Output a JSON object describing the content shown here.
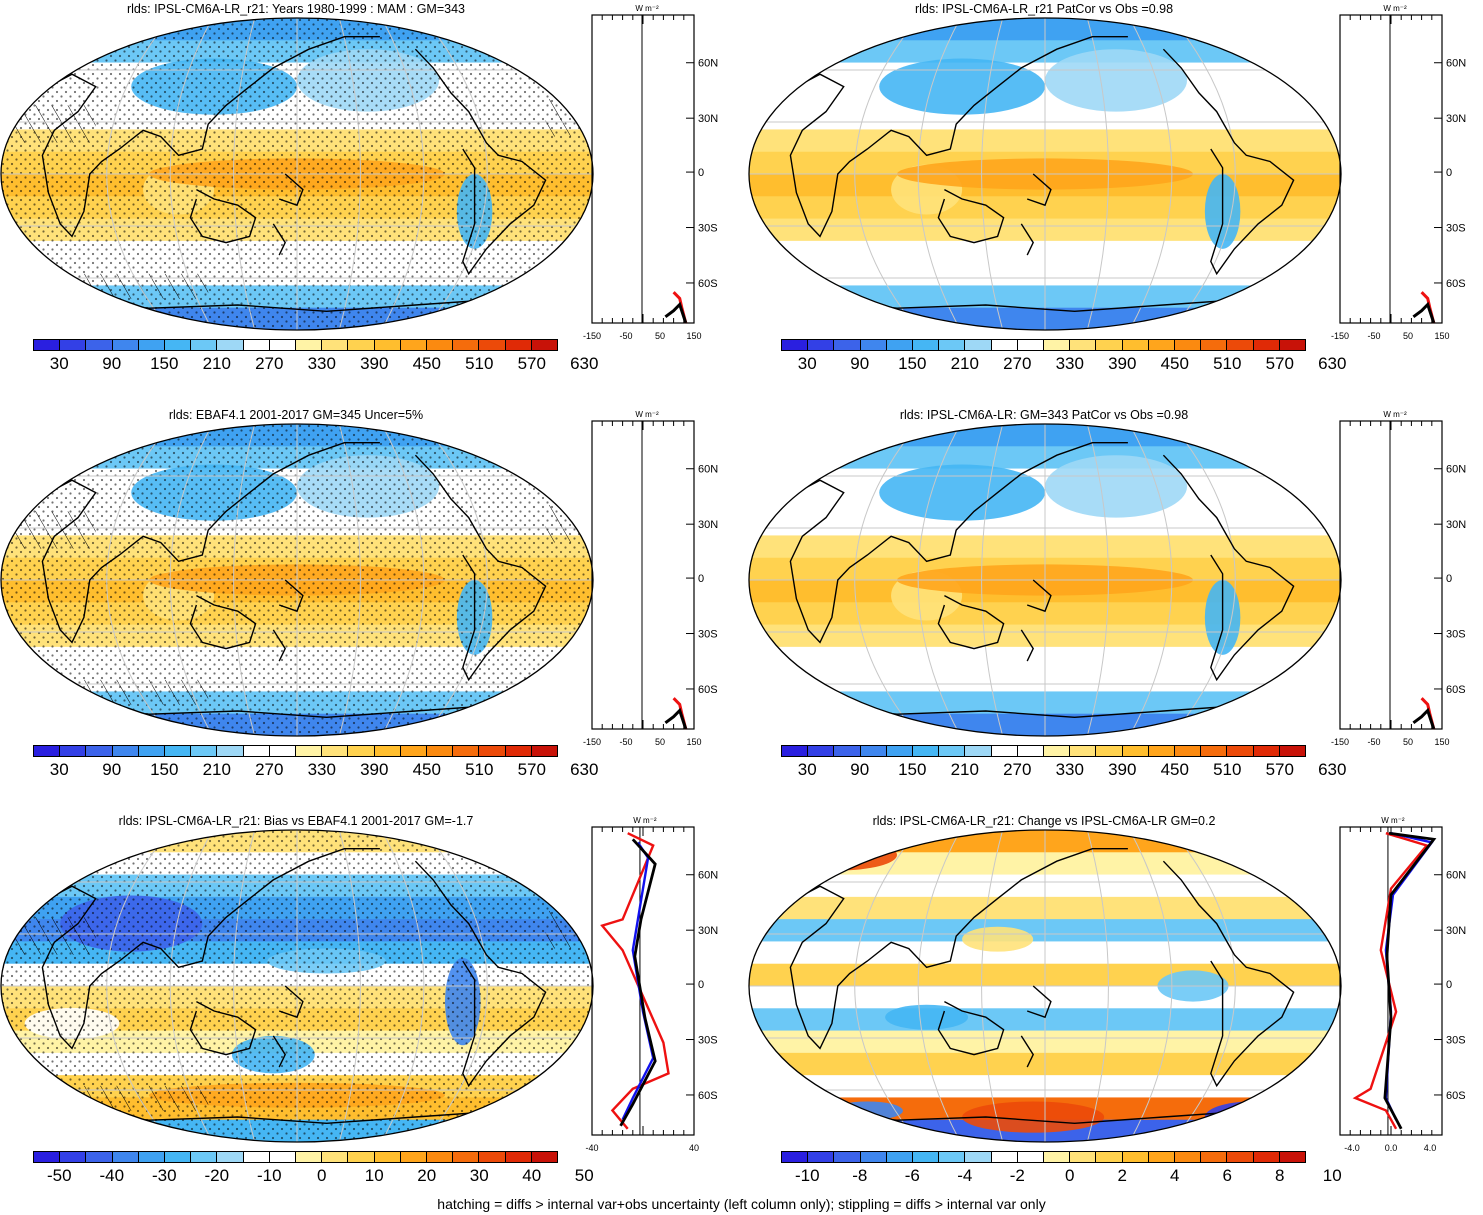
{
  "variable": "rlds",
  "footnote": "hatching = diffs > internal var+obs uncertainty (left column only); stippling = diffs > internal var only",
  "zonal_unit": "W m⁻²",
  "lat_labels": [
    "60N",
    "30N",
    "0",
    "30S",
    "60S"
  ],
  "scales": {
    "abs": {
      "colors": [
        "#2a1fe0",
        "#3340e6",
        "#3c63ea",
        "#3f86ee",
        "#3fa2f2",
        "#45b6f4",
        "#6cc8f6",
        "#9ed8f6",
        "#ffffff",
        "#ffffff",
        "#fff3a6",
        "#ffe27a",
        "#ffd24f",
        "#ffbe2e",
        "#ffa51c",
        "#fb8a10",
        "#f56c0c",
        "#ec4a09",
        "#e02a06",
        "#c81208"
      ],
      "labels": [
        "30",
        "90",
        "150",
        "210",
        "270",
        "330",
        "390",
        "450",
        "510",
        "570",
        "630"
      ]
    },
    "bias": {
      "colors": [
        "#2a1fe0",
        "#3340e6",
        "#3c63ea",
        "#3f86ee",
        "#3fa2f2",
        "#45b6f4",
        "#6cc8f6",
        "#9ed8f6",
        "#ffffff",
        "#ffffff",
        "#fff3a6",
        "#ffe27a",
        "#ffd24f",
        "#ffbe2e",
        "#ffa51c",
        "#fb8a10",
        "#f56c0c",
        "#ec4a09",
        "#e02a06",
        "#c81208"
      ],
      "labels": [
        "-50",
        "-40",
        "-30",
        "-20",
        "-10",
        "0",
        "10",
        "20",
        "30",
        "40",
        "50"
      ]
    },
    "change": {
      "colors": [
        "#2a1fe0",
        "#3340e6",
        "#3c63ea",
        "#3f86ee",
        "#3fa2f2",
        "#45b6f4",
        "#6cc8f6",
        "#9ed8f6",
        "#ffffff",
        "#ffffff",
        "#fff3a6",
        "#ffe27a",
        "#ffd24f",
        "#ffbe2e",
        "#ffa51c",
        "#fb8a10",
        "#f56c0c",
        "#ec4a09",
        "#e02a06",
        "#c81208"
      ],
      "labels": [
        "-10",
        "-8",
        "-6",
        "-4",
        "-2",
        "0",
        "2",
        "4",
        "6",
        "8",
        "10"
      ]
    }
  },
  "panels": [
    {
      "title": "rlds: IPSL-CM6A-LR_r21: Years 1980-1999 : MAM : GM=343",
      "scale": "abs",
      "type": "abs",
      "xticks": [
        "-150",
        "-50",
        "50",
        "150"
      ],
      "hatch": true,
      "stipple": true
    },
    {
      "title": "rlds: IPSL-CM6A-LR_r21 PatCor vs Obs =0.98",
      "scale": "abs",
      "type": "abs",
      "xticks": [
        "-150",
        "-50",
        "50",
        "150"
      ],
      "hatch": false,
      "stipple": false
    },
    {
      "title": "rlds: EBAF4.1 2001-2017 GM=345 Uncer=5%",
      "scale": "abs",
      "type": "abs",
      "xticks": [
        "-150",
        "-50",
        "50",
        "150"
      ],
      "hatch": true,
      "stipple": true
    },
    {
      "title": "rlds: IPSL-CM6A-LR: GM=343 PatCor vs Obs =0.98",
      "scale": "abs",
      "type": "abs",
      "xticks": [
        "-150",
        "-50",
        "50",
        "150"
      ],
      "hatch": false,
      "stipple": false
    },
    {
      "title": "rlds: IPSL-CM6A-LR_r21: Bias vs EBAF4.1 2001-2017 GM=-1.7",
      "scale": "bias",
      "type": "bias",
      "xticks": [
        "-40",
        "40"
      ],
      "hatch": true,
      "stipple": true
    },
    {
      "title": "rlds: IPSL-CM6A-LR_r21: Change vs IPSL-CM6A-LR GM=0.2",
      "scale": "change",
      "type": "change",
      "xticks": [
        "-4.0",
        "0.0",
        "4.0"
      ],
      "hatch": false,
      "stipple": false
    }
  ]
}
